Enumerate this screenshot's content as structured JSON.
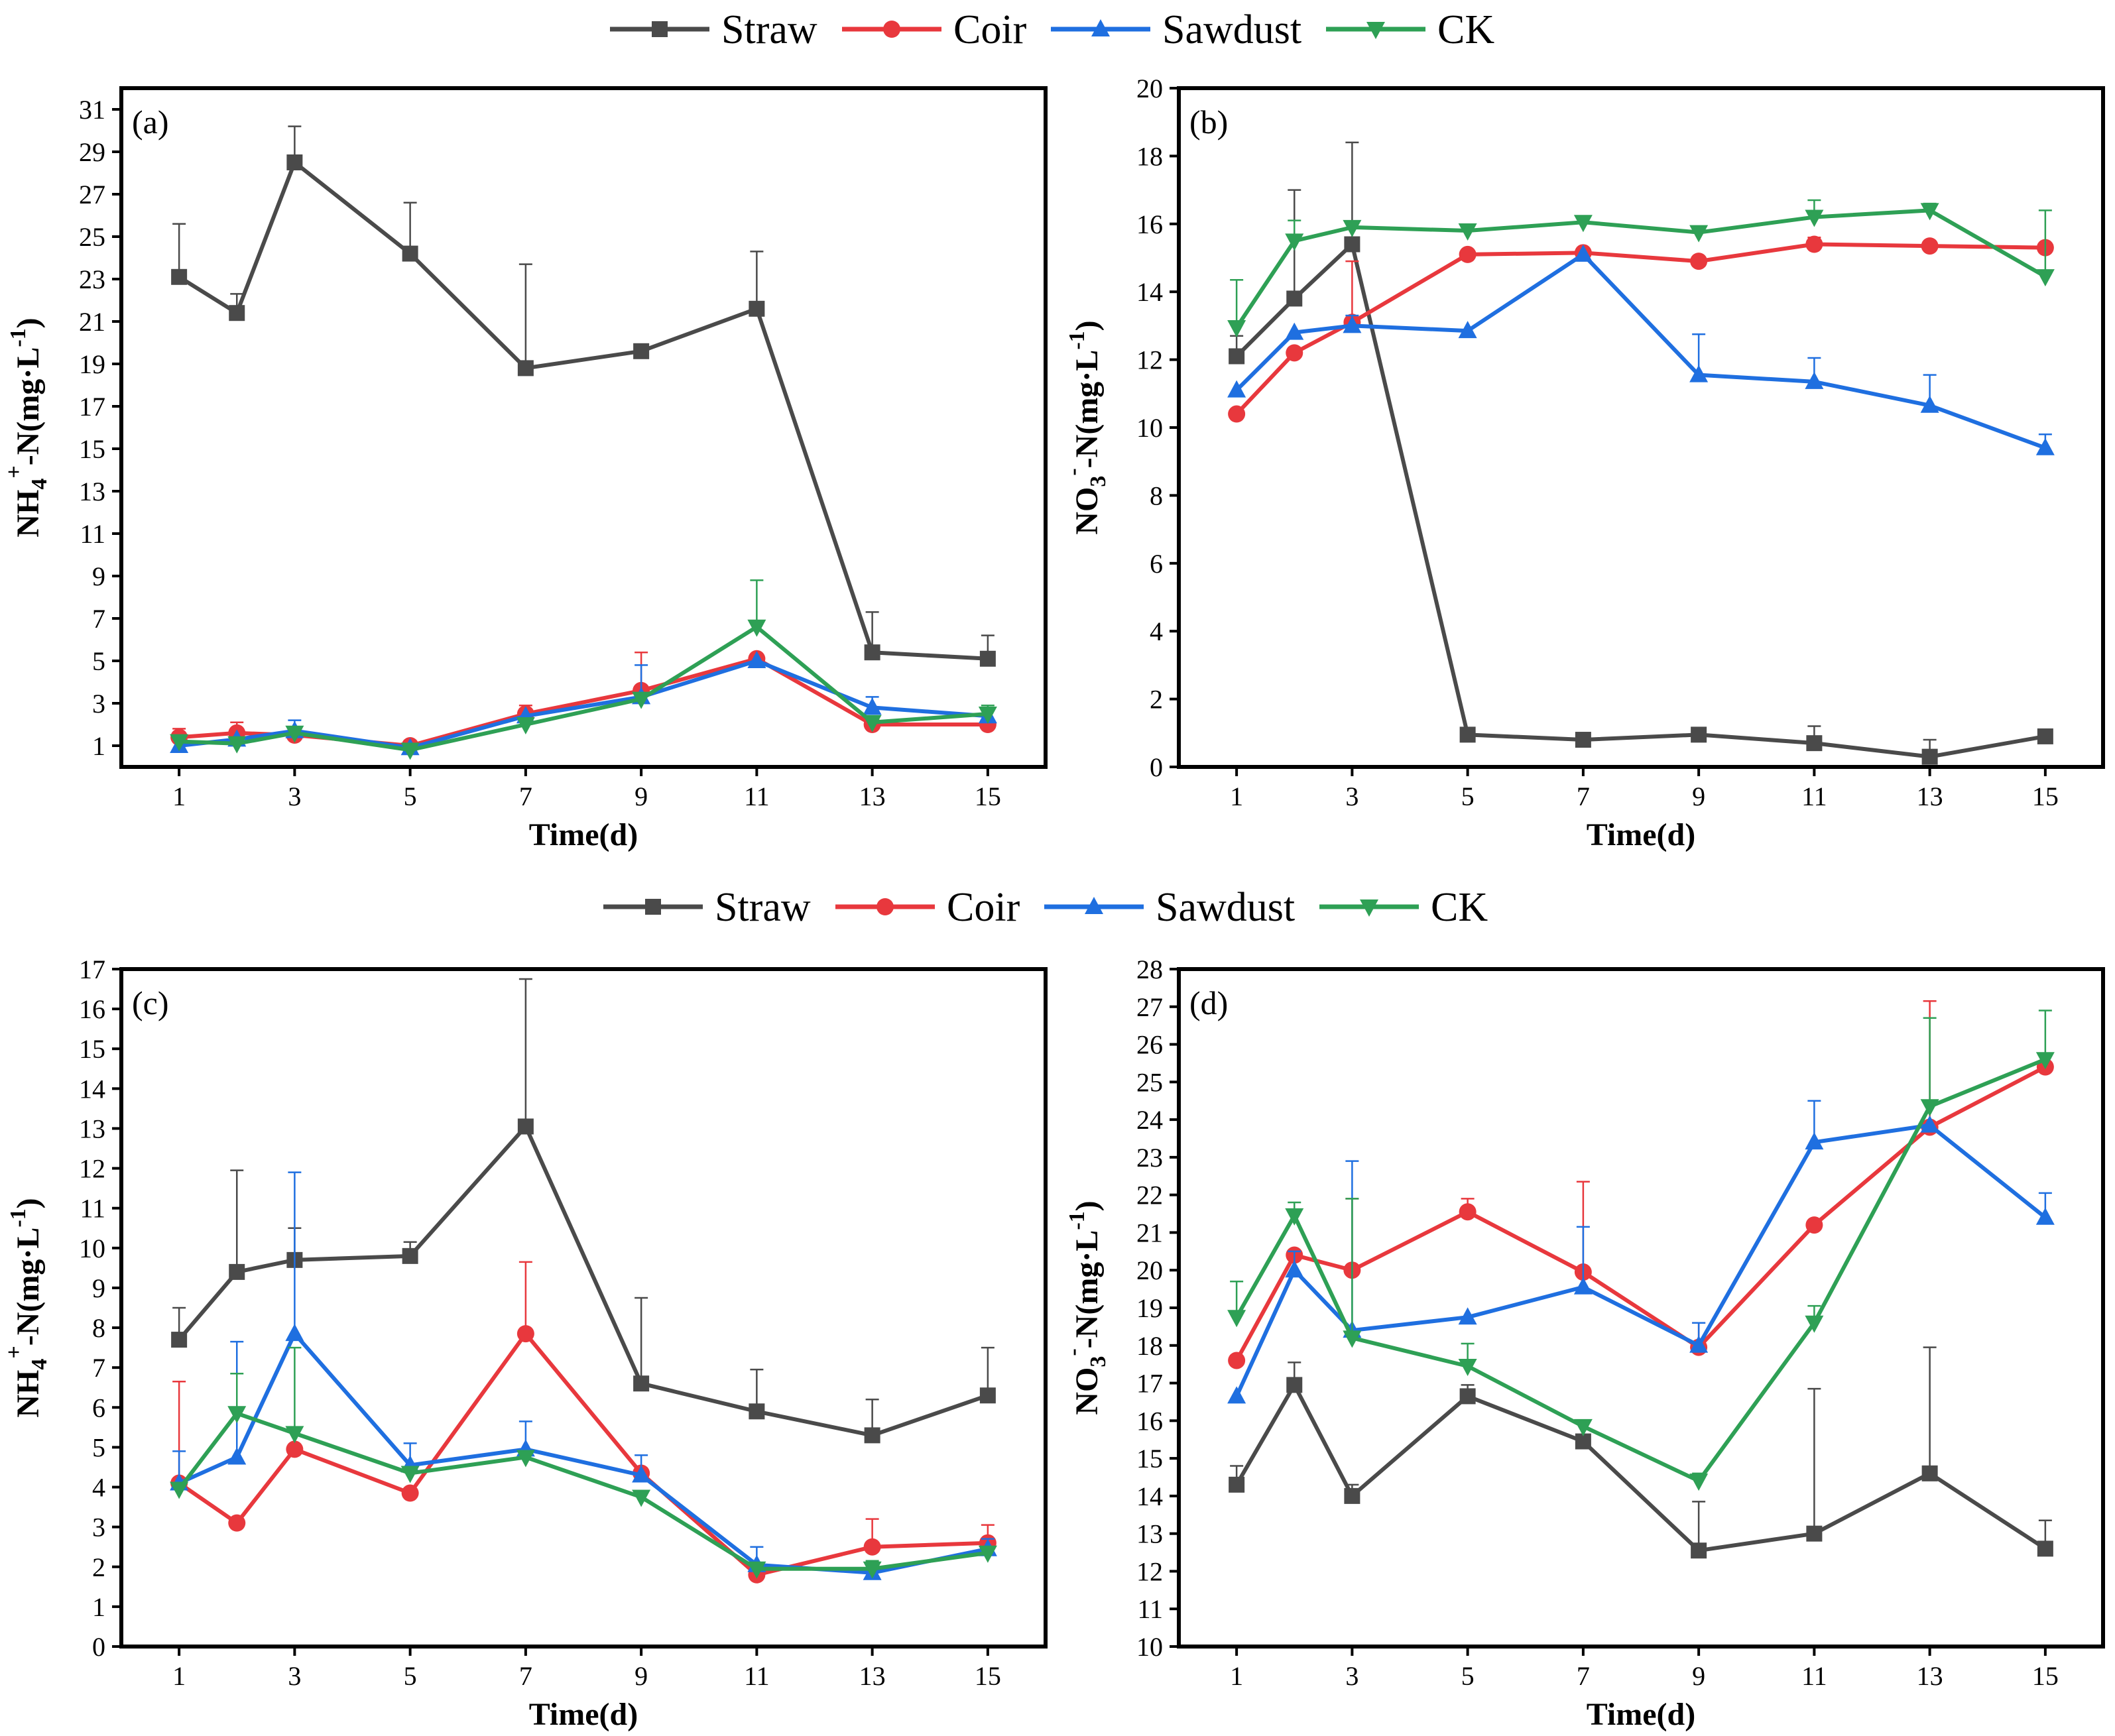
{
  "legend": {
    "items": [
      {
        "label": "Straw",
        "color": "#4a4a4a",
        "marker": "square"
      },
      {
        "label": "Coir",
        "color": "#e8383d",
        "marker": "circle"
      },
      {
        "label": "Sawdust",
        "color": "#1f6fe0",
        "marker": "triangle-up"
      },
      {
        "label": "CK",
        "color": "#2ea055",
        "marker": "triangle-down"
      }
    ]
  },
  "chart_data": [
    {
      "type": "line",
      "panel_label": "(a)",
      "xlabel": "Time(d)",
      "ylabel_parts": {
        "base": "NH",
        "sub": "4",
        "sup": "+",
        "rest": "-N(mg·L",
        "unit_sup": "-1",
        "close": ")"
      },
      "x": [
        1,
        2,
        3,
        5,
        7,
        9,
        11,
        13,
        15
      ],
      "xticks": [
        1,
        3,
        5,
        7,
        9,
        11,
        13,
        15
      ],
      "xlim": [
        0,
        16
      ],
      "ylim": [
        0,
        32
      ],
      "yticks": [
        1,
        3,
        5,
        7,
        9,
        11,
        13,
        15,
        17,
        19,
        21,
        23,
        25,
        27,
        29,
        31
      ],
      "series": [
        {
          "name": "Straw",
          "values": [
            23.1,
            21.4,
            28.5,
            24.2,
            18.8,
            19.6,
            21.6,
            5.4,
            5.1
          ],
          "errors": [
            2.5,
            0.9,
            1.7,
            2.4,
            4.9,
            0,
            2.7,
            1.9,
            1.1
          ]
        },
        {
          "name": "Coir",
          "values": [
            1.4,
            1.6,
            1.5,
            1.0,
            2.5,
            3.6,
            5.1,
            2.0,
            2.0
          ],
          "errors": [
            0.4,
            0.5,
            0,
            0,
            0.4,
            1.8,
            0,
            0,
            0
          ]
        },
        {
          "name": "Sawdust",
          "values": [
            1.0,
            1.3,
            1.7,
            0.9,
            2.4,
            3.3,
            5.0,
            2.8,
            2.4
          ],
          "errors": [
            0,
            0,
            0.5,
            0,
            0,
            1.5,
            0,
            0.5,
            0.3
          ]
        },
        {
          "name": "CK",
          "values": [
            1.2,
            1.1,
            1.6,
            0.8,
            2.0,
            3.2,
            6.6,
            2.1,
            2.5
          ],
          "errors": [
            0,
            0,
            0,
            0,
            0,
            0,
            2.2,
            0,
            0.4
          ]
        }
      ]
    },
    {
      "type": "line",
      "panel_label": "(b)",
      "xlabel": "Time(d)",
      "ylabel_parts": {
        "base": "NO",
        "sub": "3",
        "sup": "-",
        "rest": "-N(mg·L",
        "unit_sup": "-1",
        "close": ")"
      },
      "x": [
        1,
        2,
        3,
        5,
        7,
        9,
        11,
        13,
        15
      ],
      "xticks": [
        1,
        3,
        5,
        7,
        9,
        11,
        13,
        15
      ],
      "xlim": [
        0,
        16
      ],
      "ylim": [
        0,
        20
      ],
      "yticks": [
        0,
        2,
        4,
        6,
        8,
        10,
        12,
        14,
        16,
        18,
        20
      ],
      "series": [
        {
          "name": "Straw",
          "values": [
            12.1,
            13.8,
            15.4,
            0.95,
            0.8,
            0.95,
            0.7,
            0.3,
            0.9
          ],
          "errors": [
            0.6,
            3.2,
            3.0,
            0,
            0,
            0,
            0.5,
            0.5,
            0
          ]
        },
        {
          "name": "Coir",
          "values": [
            10.4,
            12.2,
            13.1,
            15.1,
            15.15,
            14.9,
            15.4,
            15.35,
            15.3
          ],
          "errors": [
            0,
            0,
            1.8,
            0,
            0,
            0,
            0.2,
            0,
            0
          ]
        },
        {
          "name": "Sawdust",
          "values": [
            11.1,
            12.8,
            13.0,
            12.85,
            15.1,
            11.55,
            11.35,
            10.65,
            9.4
          ],
          "errors": [
            0,
            0,
            0.3,
            0,
            0,
            1.2,
            0.7,
            0.9,
            0.4
          ]
        },
        {
          "name": "CK",
          "values": [
            12.95,
            15.5,
            15.9,
            15.8,
            16.05,
            15.75,
            16.2,
            16.4,
            14.45
          ],
          "errors": [
            1.4,
            0.6,
            0,
            0,
            0,
            0,
            0.5,
            0.2,
            1.95
          ]
        }
      ]
    },
    {
      "type": "line",
      "panel_label": "(c)",
      "xlabel": "Time(d)",
      "ylabel_parts": {
        "base": "NH",
        "sub": "4",
        "sup": "+",
        "rest": "-N(mg·L",
        "unit_sup": "-1",
        "close": ")"
      },
      "x": [
        1,
        2,
        3,
        5,
        7,
        9,
        11,
        13,
        15
      ],
      "xticks": [
        1,
        3,
        5,
        7,
        9,
        11,
        13,
        15
      ],
      "xlim": [
        0,
        16
      ],
      "ylim": [
        0,
        17
      ],
      "yticks": [
        0,
        1,
        2,
        3,
        4,
        5,
        6,
        7,
        8,
        9,
        10,
        11,
        12,
        13,
        14,
        15,
        16,
        17
      ],
      "series": [
        {
          "name": "Straw",
          "values": [
            7.7,
            9.4,
            9.7,
            9.8,
            13.05,
            6.6,
            5.9,
            5.3,
            6.3
          ],
          "errors": [
            0.8,
            2.55,
            0.8,
            0.35,
            3.7,
            2.15,
            1.05,
            0.9,
            1.2
          ]
        },
        {
          "name": "Coir",
          "values": [
            4.1,
            3.1,
            4.95,
            3.85,
            7.85,
            4.35,
            1.8,
            2.5,
            2.6
          ],
          "errors": [
            2.55,
            0,
            0,
            0,
            1.8,
            0,
            0,
            0.7,
            0.45
          ]
        },
        {
          "name": "Sawdust",
          "values": [
            4.1,
            4.75,
            7.85,
            4.55,
            4.95,
            4.3,
            2.05,
            1.85,
            2.45
          ],
          "errors": [
            0.8,
            2.9,
            4.05,
            0.55,
            0.7,
            0.5,
            0.45,
            0,
            0.25
          ]
        },
        {
          "name": "CK",
          "values": [
            3.95,
            5.85,
            5.35,
            4.35,
            4.75,
            3.75,
            1.95,
            1.95,
            2.35
          ],
          "errors": [
            0,
            1.0,
            2.15,
            0,
            0,
            0,
            0,
            0.2,
            0
          ]
        }
      ]
    },
    {
      "type": "line",
      "panel_label": "(d)",
      "xlabel": "Time(d)",
      "ylabel_parts": {
        "base": "NO",
        "sub": "3",
        "sup": "-",
        "rest": "-N(mg·L",
        "unit_sup": "-1",
        "close": ")"
      },
      "x": [
        1,
        2,
        3,
        5,
        7,
        9,
        11,
        13,
        15
      ],
      "xticks": [
        1,
        3,
        5,
        7,
        9,
        11,
        13,
        15
      ],
      "xlim": [
        0,
        16
      ],
      "ylim": [
        10,
        28
      ],
      "yticks": [
        10,
        11,
        12,
        13,
        14,
        15,
        16,
        17,
        18,
        19,
        20,
        21,
        22,
        23,
        24,
        25,
        26,
        27,
        28
      ],
      "series": [
        {
          "name": "Straw",
          "values": [
            14.3,
            16.95,
            14.0,
            16.65,
            15.45,
            12.55,
            13.0,
            14.6,
            12.6
          ],
          "errors": [
            0.5,
            0.6,
            0.3,
            0.3,
            0,
            1.3,
            3.85,
            3.35,
            0.75
          ]
        },
        {
          "name": "Coir",
          "values": [
            17.6,
            20.4,
            20.0,
            21.55,
            19.95,
            17.95,
            21.2,
            23.8,
            25.4
          ],
          "errors": [
            0,
            0,
            1.9,
            0.35,
            2.4,
            0.65,
            0,
            3.35,
            0
          ]
        },
        {
          "name": "Sawdust",
          "values": [
            16.65,
            20.0,
            18.4,
            18.75,
            19.55,
            18.0,
            23.4,
            23.85,
            21.4
          ],
          "errors": [
            0,
            0.5,
            4.5,
            0,
            1.6,
            0.6,
            1.1,
            0,
            0.65
          ]
        },
        {
          "name": "CK",
          "values": [
            18.75,
            21.45,
            18.2,
            17.45,
            15.85,
            14.4,
            18.6,
            24.35,
            25.6
          ],
          "errors": [
            0.95,
            0.35,
            3.7,
            0.6,
            0,
            0.2,
            0.45,
            2.35,
            1.3
          ]
        }
      ]
    }
  ]
}
